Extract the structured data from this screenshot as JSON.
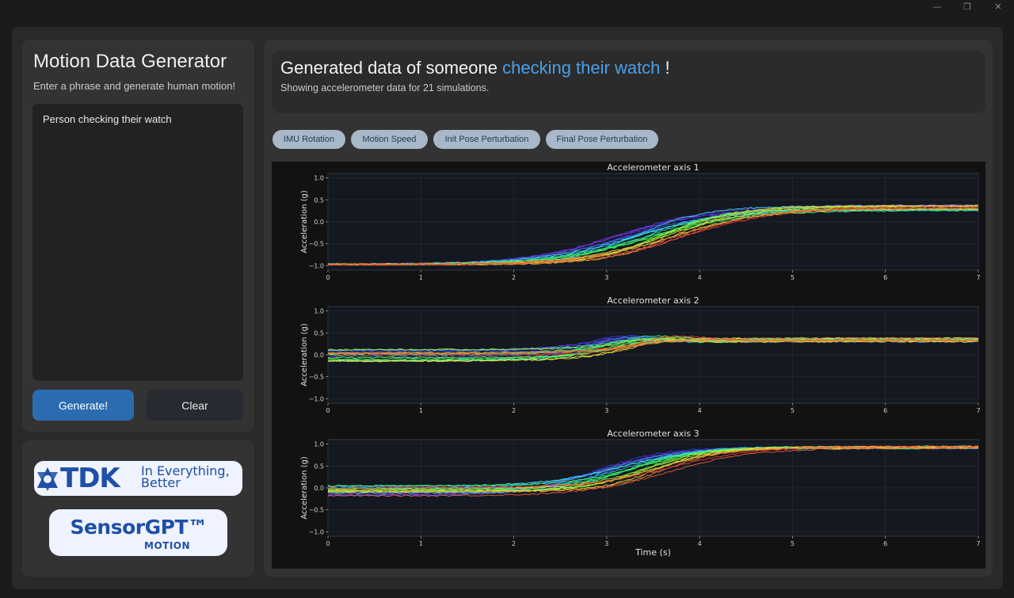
{
  "window": {
    "minimize_glyph": "—",
    "maximize_glyph": "❐",
    "close_glyph": "✕"
  },
  "sidebar": {
    "title": "Motion Data Generator",
    "subtitle": "Enter a phrase and generate human motion!",
    "prompt_value": "Person checking their watch",
    "generate_label": "Generate!",
    "clear_label": "Clear"
  },
  "logos": {
    "tdk_text": "TDK",
    "tdk_tagline_1": "In Everything,",
    "tdk_tagline_2": "Better",
    "sensorgpt_text": "SensorGPT™",
    "sensorgpt_sub": "MOTION"
  },
  "header": {
    "prefix": "Generated data of someone",
    "highlight": "checking their watch",
    "suffix": "!",
    "summary": "Showing accelerometer data for 21 simulations."
  },
  "filters": {
    "imu_rotation": "IMU Rotation",
    "motion_speed": "Motion Speed",
    "init_pose": "Init Pose Perturbation",
    "final_pose": "Final Pose Perturbation"
  },
  "colors": {
    "accent": "#4a9fe8",
    "generate_button": "#2b6cb0",
    "pill_bg": "#a8b8c8",
    "plot_bg": "#121212",
    "axes_bg": "#141820"
  },
  "chart_data": [
    {
      "type": "line",
      "title": "Accelerometer axis 1",
      "xlabel": "",
      "ylabel": "Acceleration (g)",
      "xlim": [
        0,
        7
      ],
      "ylim": [
        -1.1,
        1.1
      ],
      "xticks": [
        0,
        1,
        2,
        3,
        4,
        5,
        6,
        7
      ],
      "yticks": [
        -1.0,
        -0.5,
        0.0,
        0.5,
        1.0
      ],
      "grid": true,
      "series_count": 21,
      "start_range": [
        -0.97,
        -0.97
      ],
      "end_range": [
        0.25,
        0.38
      ],
      "transition_center_range": [
        3.1,
        3.85
      ],
      "transition_width_range": [
        0.35,
        0.55
      ]
    },
    {
      "type": "line",
      "title": "Accelerometer axis 2",
      "xlabel": "",
      "ylabel": "Acceleration (g)",
      "xlim": [
        0,
        7
      ],
      "ylim": [
        -1.1,
        1.1
      ],
      "xticks": [
        0,
        1,
        2,
        3,
        4,
        5,
        6,
        7
      ],
      "yticks": [
        -1.0,
        -0.5,
        0.0,
        0.5,
        1.0
      ],
      "grid": true,
      "series_count": 21,
      "start_range": [
        -0.15,
        0.2
      ],
      "end_range": [
        0.3,
        0.38
      ],
      "transition_center_range": [
        2.8,
        3.4
      ],
      "transition_width_range": [
        0.3,
        0.45
      ],
      "overshoot_peak": 0.52
    },
    {
      "type": "line",
      "title": "Accelerometer axis 3",
      "xlabel": "Time (s)",
      "ylabel": "Acceleration (g)",
      "xlim": [
        0,
        7
      ],
      "ylim": [
        -1.1,
        1.1
      ],
      "xticks": [
        0,
        1,
        2,
        3,
        4,
        5,
        6,
        7
      ],
      "yticks": [
        -1.0,
        -0.5,
        0.0,
        0.5,
        1.0
      ],
      "grid": true,
      "series_count": 21,
      "start_range": [
        -0.2,
        0.05
      ],
      "end_range": [
        0.9,
        0.95
      ],
      "transition_center_range": [
        2.9,
        3.7
      ],
      "transition_width_range": [
        0.3,
        0.45
      ]
    }
  ]
}
